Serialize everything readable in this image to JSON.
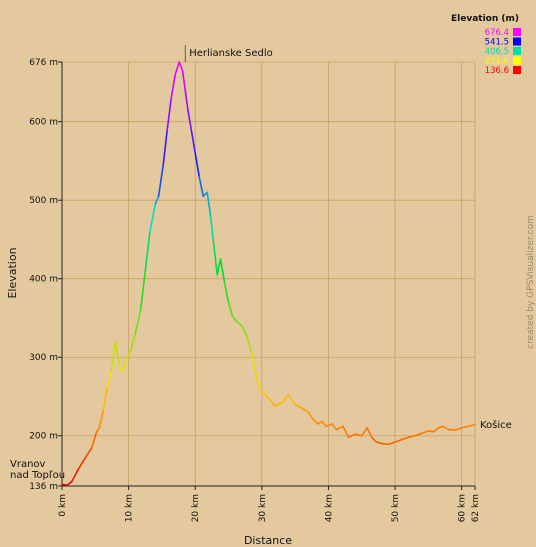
{
  "chart_data": {
    "type": "line",
    "xlabel": "Distance",
    "ylabel": "Elevation",
    "x_unit": "km",
    "y_unit": "m",
    "xlim": [
      0,
      62
    ],
    "ylim": [
      136,
      676
    ],
    "x_ticks": [
      0,
      10,
      20,
      30,
      40,
      50,
      60,
      62
    ],
    "y_ticks": [
      136,
      200,
      300,
      400,
      500,
      600,
      676
    ],
    "grid": true,
    "background": "#e4c99e",
    "grid_color": "#c8a060",
    "axis_color": "#222222",
    "legend": {
      "title": "Elevation (m)",
      "placement": "top-right",
      "entries": [
        {
          "label": "676.4",
          "color": "#ff00ff"
        },
        {
          "label": "541.5",
          "color": "#0000ff"
        },
        {
          "label": "406.5",
          "color": "#00e0a0"
        },
        {
          "label": "271.6",
          "color": "#ffff00"
        },
        {
          "label": "136.6",
          "color": "#ff0000"
        }
      ]
    },
    "gradient": [
      [
        136.6,
        "#e00000"
      ],
      [
        200,
        "#ff7000"
      ],
      [
        271.6,
        "#ffe000"
      ],
      [
        406.5,
        "#00dd22"
      ],
      [
        480,
        "#00e0c0"
      ],
      [
        541.5,
        "#1020ff"
      ],
      [
        676.4,
        "#ff00ff"
      ]
    ],
    "annotations": [
      {
        "text": "Herlianske Sedlo",
        "x": 18.5,
        "y": 676
      },
      {
        "text": "Košice",
        "x": 62,
        "y": 214
      },
      {
        "text": "Vranov",
        "x": 0,
        "y": 158
      },
      {
        "text": "nad Topľou",
        "x": 0,
        "y": 143
      }
    ],
    "credit": "created by GPSVisualizer.com",
    "series": [
      {
        "x": [
          0,
          0.8,
          1.5,
          2.5,
          3.5,
          4.5,
          5.2,
          5.6,
          6.2,
          6.8,
          7.4,
          8,
          8.6,
          9.1,
          9.7,
          10.3,
          11,
          11.8,
          12.5,
          13.2,
          14,
          14.5,
          15.2,
          15.8,
          16.4,
          17,
          17.6,
          18.1,
          18.5,
          18.9,
          19.4,
          20,
          20.6,
          21.2,
          21.8,
          22.3,
          22.7,
          23.3,
          23.8,
          24.4,
          25,
          25.6,
          26.3,
          27,
          27.7,
          28.5,
          29.3,
          30,
          30.6,
          31.3,
          32,
          33,
          34,
          35,
          36,
          37,
          37.6,
          38.4,
          39,
          39.7,
          40.5,
          41.2,
          42.2,
          43,
          44,
          45,
          45.8,
          46.5,
          47.2,
          48,
          49,
          50,
          51,
          52,
          53,
          54,
          55,
          55.8,
          56.5,
          57.2,
          58,
          59,
          60,
          61,
          62
        ],
        "y": [
          138,
          137,
          142,
          158,
          172,
          185,
          205,
          210,
          232,
          262,
          282,
          320,
          290,
          282,
          298,
          308,
          330,
          360,
          410,
          460,
          495,
          505,
          545,
          590,
          630,
          660,
          676,
          665,
          640,
          615,
          590,
          560,
          530,
          505,
          510,
          480,
          450,
          405,
          425,
          395,
          370,
          352,
          345,
          340,
          328,
          305,
          270,
          255,
          252,
          245,
          238,
          242,
          252,
          240,
          235,
          230,
          222,
          215,
          218,
          212,
          215,
          208,
          212,
          198,
          202,
          200,
          210,
          198,
          192,
          190,
          189,
          192,
          195,
          198,
          200,
          203,
          206,
          205,
          210,
          212,
          208,
          207,
          210,
          212,
          214
        ]
      }
    ]
  }
}
